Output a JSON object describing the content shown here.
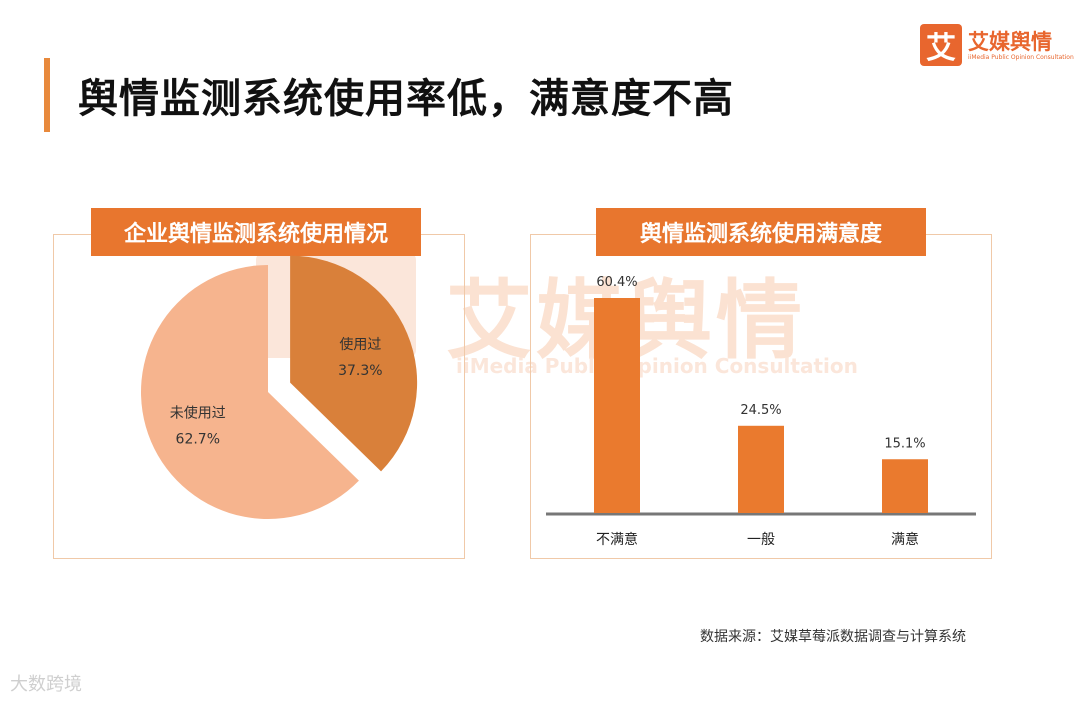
{
  "title": "舆情监测系统使用率低，满意度不高",
  "logo": {
    "mark": "艾",
    "name": "艾媒舆情",
    "subtitle": "iiMedia Public Opinion Consultation"
  },
  "watermark": {
    "text": "艾媒舆情",
    "sub": "iiMedia Public Opinion Consultation"
  },
  "source": "数据来源：艾媒草莓派数据调查与计算系统",
  "bottom_watermark": "大数跨境",
  "colors": {
    "accent": "#e8762e",
    "pie_used": "#d9803a",
    "pie_unused": "#f6b48e",
    "bar": "#ea7a2e",
    "axis": "#777777"
  },
  "chart_data": [
    {
      "type": "pie",
      "title": "企业舆情监测系统使用情况",
      "slices": [
        {
          "label": "使用过",
          "value": 37.3,
          "display": "37.3%",
          "exploded": true
        },
        {
          "label": "未使用过",
          "value": 62.7,
          "display": "62.7%",
          "exploded": false
        }
      ]
    },
    {
      "type": "bar",
      "title": "舆情监测系统使用满意度",
      "categories": [
        "不满意",
        "一般",
        "满意"
      ],
      "values": [
        60.4,
        24.5,
        15.1
      ],
      "value_labels": [
        "60.4%",
        "24.5%",
        "15.1%"
      ],
      "ylim": [
        0,
        60.4
      ],
      "grid": false,
      "legend": "none"
    }
  ]
}
